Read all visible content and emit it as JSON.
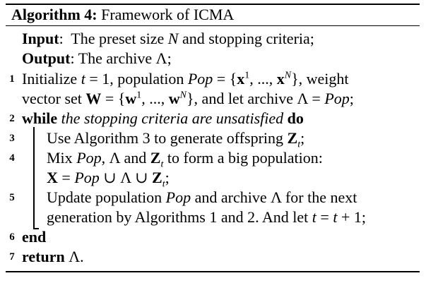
{
  "algorithm": {
    "title_label": "Algorithm 4:",
    "title_text": "Framework of ICMA",
    "input_label": "Input",
    "input_text": "The preset size N and stopping criteria;",
    "output_label": "Output",
    "output_text": "The archive Λ;",
    "lines": [
      {
        "num": "1",
        "text": "Initialize t = 1, population Pop = {x1, ..., xN}, weight vector set W = {w1, ..., wN}, and let archive Λ = Pop;"
      },
      {
        "num": "2",
        "text": "while the stopping criteria are unsatisfied do"
      },
      {
        "num": "3",
        "text": "Use Algorithm 3 to generate offspring Zt;"
      },
      {
        "num": "4",
        "text": "Mix Pop, Λ and Zt to form a big population: X = Pop ∪ Λ ∪ Zt;"
      },
      {
        "num": "5",
        "text": "Update population Pop and archive Λ for the next generation by Algorithms 1 and 2. And let t = t + 1;"
      },
      {
        "num": "6",
        "text": "end"
      },
      {
        "num": "7",
        "text": "return Λ."
      }
    ]
  }
}
